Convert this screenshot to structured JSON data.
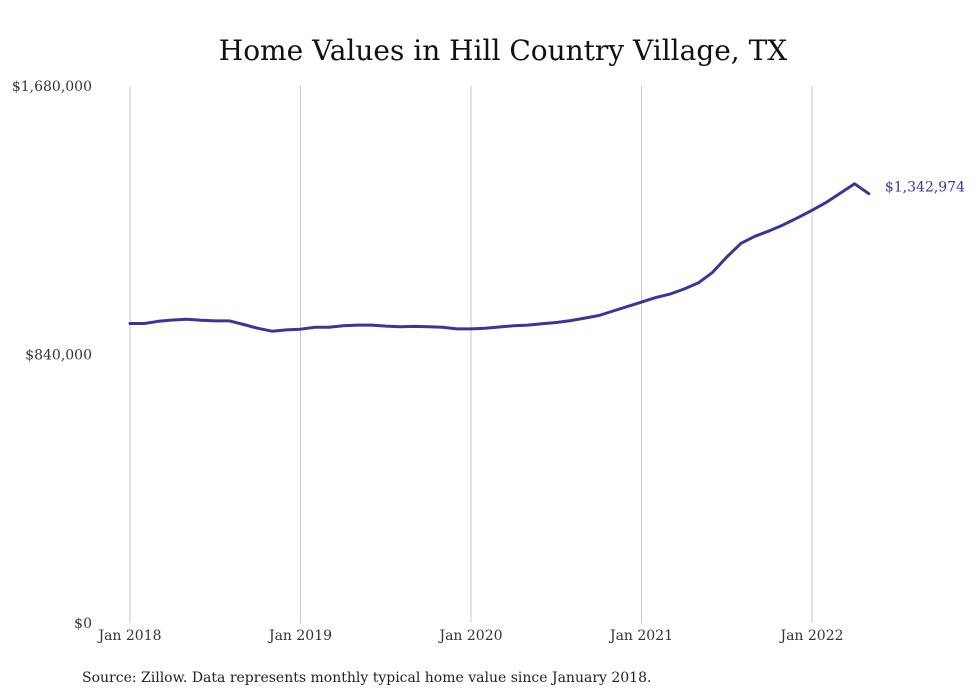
{
  "chart_data": {
    "type": "line",
    "title": "Home Values in Hill Country Village, TX",
    "xlabel": "",
    "ylabel": "",
    "ylim": [
      0,
      1680000
    ],
    "y_ticks": [
      {
        "value": 0,
        "label": "$0"
      },
      {
        "value": 840000,
        "label": "$840,000"
      },
      {
        "value": 1680000,
        "label": "$1,680,000"
      }
    ],
    "x_ticks": [
      {
        "value": "2018-01",
        "label": "Jan 2018"
      },
      {
        "value": "2019-01",
        "label": "Jan 2019"
      },
      {
        "value": "2020-01",
        "label": "Jan 2020"
      },
      {
        "value": "2021-01",
        "label": "Jan 2021"
      },
      {
        "value": "2022-01",
        "label": "Jan 2022"
      }
    ],
    "grid": {
      "x": true,
      "y": false
    },
    "colors": {
      "line": "#3a3598",
      "grid": "#c8c8c8"
    },
    "series": [
      {
        "x": [
          "2018-01",
          "2018-02",
          "2018-03",
          "2018-04",
          "2018-05",
          "2018-06",
          "2018-07",
          "2018-08",
          "2018-09",
          "2018-10",
          "2018-11",
          "2018-12",
          "2019-01",
          "2019-02",
          "2019-03",
          "2019-04",
          "2019-05",
          "2019-06",
          "2019-07",
          "2019-08",
          "2019-09",
          "2019-10",
          "2019-11",
          "2019-12",
          "2020-01",
          "2020-02",
          "2020-03",
          "2020-04",
          "2020-05",
          "2020-06",
          "2020-07",
          "2020-08",
          "2020-09",
          "2020-10",
          "2020-11",
          "2020-12",
          "2021-01",
          "2021-02",
          "2021-03",
          "2021-04",
          "2021-05",
          "2021-06",
          "2021-07",
          "2021-08",
          "2021-09",
          "2021-10",
          "2021-11",
          "2021-12",
          "2022-01",
          "2022-02",
          "2022-03",
          "2022-04",
          "2022-05"
        ],
        "values": [
          937000,
          937000,
          944000,
          948000,
          950000,
          947000,
          945000,
          945000,
          934000,
          922000,
          913000,
          917000,
          919000,
          925000,
          925000,
          930000,
          932000,
          932000,
          929000,
          927000,
          928000,
          927000,
          925000,
          920000,
          920000,
          922000,
          926000,
          930000,
          932000,
          936000,
          940000,
          946000,
          954000,
          962000,
          976000,
          990000,
          1004000,
          1018000,
          1029000,
          1045000,
          1064000,
          1097000,
          1145000,
          1188000,
          1210000,
          1227000,
          1246000,
          1268000,
          1291000,
          1316000,
          1345000,
          1374000,
          1342974
        ],
        "end_label": "$1,342,974"
      }
    ]
  },
  "footer": {
    "source": "Source: Zillow. Data represents monthly typical home value since January 2018."
  }
}
